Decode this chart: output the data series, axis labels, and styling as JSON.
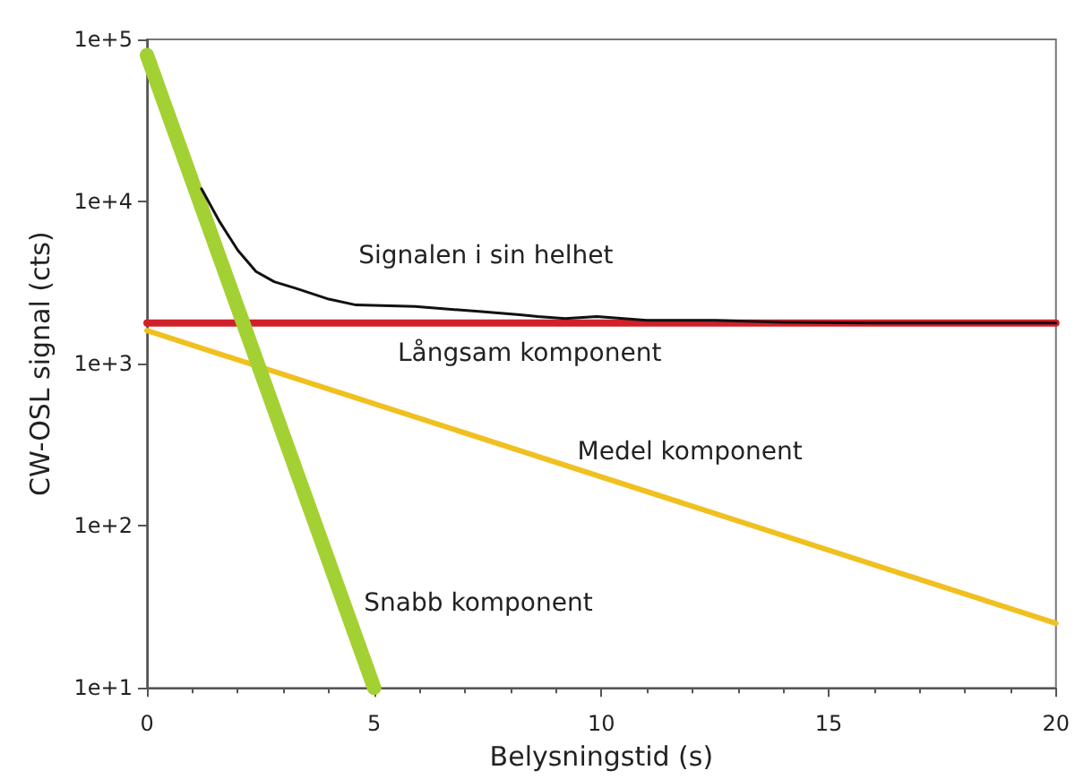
{
  "chart_data": {
    "type": "line",
    "xlabel": "Belysningstid (s)",
    "ylabel": "CW-OSL signal (cts)",
    "log": "y",
    "xlim": [
      0,
      20
    ],
    "xticks": [
      0,
      5,
      10,
      15,
      20
    ],
    "ylim": [
      10,
      100000
    ],
    "yticks": [
      {
        "value": 10,
        "label": "1e+1"
      },
      {
        "value": 100,
        "label": "1e+2"
      },
      {
        "value": 1000,
        "label": "1e+3"
      },
      {
        "value": 10000,
        "label": "1e+4"
      },
      {
        "value": 100000,
        "label": "1e+5"
      }
    ],
    "grid": false,
    "marker": "none",
    "line_style": "solid",
    "series": [
      {
        "name": "Signalen i sin helhet",
        "color": "#111111",
        "x": [
          1.2,
          1.6,
          2.0,
          2.4,
          2.8,
          3.3,
          4.0,
          4.6,
          5.9,
          7.3,
          8.2,
          8.6,
          9.2,
          9.9,
          11,
          12.5,
          14,
          16,
          18,
          20
        ],
        "values": [
          12000,
          7500,
          5000,
          3700,
          3200,
          2900,
          2500,
          2300,
          2250,
          2100,
          2000,
          1950,
          1900,
          1950,
          1850,
          1850,
          1800,
          1780,
          1780,
          1780
        ]
      },
      {
        "name": "Långsam komponent",
        "color": "#d0202a",
        "x": [
          0,
          20
        ],
        "values": [
          1780,
          1780
        ]
      },
      {
        "name": "Medel komponent",
        "color": "#f0c020",
        "x": [
          0,
          20
        ],
        "values": [
          1600,
          25
        ]
      },
      {
        "name": "Snabb komponent",
        "color": "#a3d133",
        "x": [
          0,
          5
        ],
        "values": [
          80000,
          10
        ]
      }
    ]
  }
}
